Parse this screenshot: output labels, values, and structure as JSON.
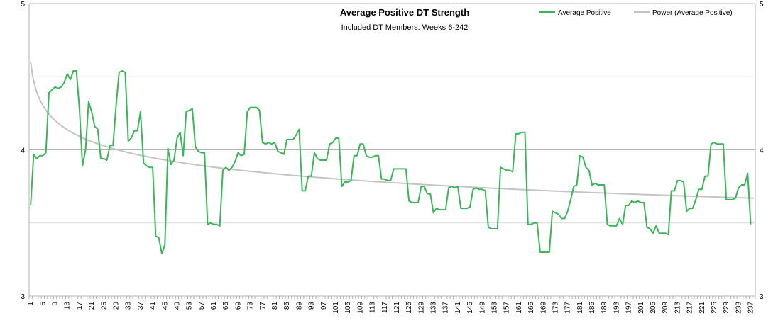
{
  "chart_data": {
    "type": "line",
    "title": "Average Positive DT Strength",
    "subtitle": "Included DT Members: Weeks 6-242",
    "ylim": [
      3,
      5
    ],
    "y_ticks": [
      3,
      4,
      5
    ],
    "y_ticks_right": [
      3,
      4,
      5
    ],
    "grid": "horizontal",
    "legend_position": "top-right",
    "x_tick_labels": [
      "1",
      "5",
      "9",
      "13",
      "17",
      "21",
      "25",
      "29",
      "33",
      "37",
      "41",
      "45",
      "49",
      "53",
      "57",
      "61",
      "65",
      "69",
      "73",
      "77",
      "81",
      "85",
      "89",
      "93",
      "97",
      "101",
      "105",
      "109",
      "113",
      "117",
      "121",
      "125",
      "129",
      "133",
      "137",
      "141",
      "145",
      "149",
      "153",
      "157",
      "161",
      "165",
      "169",
      "173",
      "177",
      "181",
      "185",
      "189",
      "193",
      "197",
      "201",
      "205",
      "209",
      "213",
      "217",
      "221",
      "225",
      "229",
      "233",
      "237"
    ],
    "x_range": [
      1,
      238
    ],
    "series": [
      {
        "name": "Average Positive",
        "color": "#3cb55a",
        "points": [
          [
            1,
            3.62
          ],
          [
            2,
            3.97
          ],
          [
            3,
            3.94
          ],
          [
            4,
            3.96
          ],
          [
            5,
            3.96
          ],
          [
            6,
            3.98
          ],
          [
            7,
            4.39
          ],
          [
            8,
            4.41
          ],
          [
            9,
            4.43
          ],
          [
            10,
            4.42
          ],
          [
            11,
            4.43
          ],
          [
            12,
            4.46
          ],
          [
            13,
            4.52
          ],
          [
            14,
            4.48
          ],
          [
            15,
            4.54
          ],
          [
            16,
            4.54
          ],
          [
            17,
            4.28
          ],
          [
            18,
            3.89
          ],
          [
            19,
            4.0
          ],
          [
            20,
            4.33
          ],
          [
            21,
            4.26
          ],
          [
            22,
            4.16
          ],
          [
            23,
            4.14
          ],
          [
            24,
            3.94
          ],
          [
            25,
            3.94
          ],
          [
            26,
            3.93
          ],
          [
            27,
            4.03
          ],
          [
            28,
            4.03
          ],
          [
            29,
            4.3
          ],
          [
            30,
            4.53
          ],
          [
            31,
            4.54
          ],
          [
            32,
            4.53
          ],
          [
            33,
            4.06
          ],
          [
            34,
            4.08
          ],
          [
            35,
            4.13
          ],
          [
            36,
            4.13
          ],
          [
            37,
            4.26
          ],
          [
            38,
            3.91
          ],
          [
            39,
            3.89
          ],
          [
            40,
            3.88
          ],
          [
            41,
            3.88
          ],
          [
            42,
            3.41
          ],
          [
            43,
            3.4
          ],
          [
            44,
            3.29
          ],
          [
            45,
            3.35
          ],
          [
            46,
            4.01
          ],
          [
            47,
            3.9
          ],
          [
            48,
            3.93
          ],
          [
            49,
            4.08
          ],
          [
            50,
            4.12
          ],
          [
            51,
            3.96
          ],
          [
            52,
            4.26
          ],
          [
            53,
            4.27
          ],
          [
            54,
            4.28
          ],
          [
            55,
            4.02
          ],
          [
            56,
            3.99
          ],
          [
            57,
            3.98
          ],
          [
            58,
            3.98
          ],
          [
            59,
            3.49
          ],
          [
            60,
            3.5
          ],
          [
            61,
            3.49
          ],
          [
            62,
            3.49
          ],
          [
            63,
            3.48
          ],
          [
            64,
            3.86
          ],
          [
            65,
            3.88
          ],
          [
            66,
            3.86
          ],
          [
            67,
            3.88
          ],
          [
            68,
            3.92
          ],
          [
            69,
            3.98
          ],
          [
            70,
            3.96
          ],
          [
            71,
            3.97
          ],
          [
            72,
            4.26
          ],
          [
            73,
            4.29
          ],
          [
            74,
            4.29
          ],
          [
            75,
            4.29
          ],
          [
            76,
            4.27
          ],
          [
            77,
            4.05
          ],
          [
            78,
            4.04
          ],
          [
            79,
            4.05
          ],
          [
            80,
            4.04
          ],
          [
            81,
            4.05
          ],
          [
            82,
            3.99
          ],
          [
            83,
            3.98
          ],
          [
            84,
            3.97
          ],
          [
            85,
            4.07
          ],
          [
            86,
            4.07
          ],
          [
            87,
            4.07
          ],
          [
            88,
            4.1
          ],
          [
            89,
            4.14
          ],
          [
            90,
            3.72
          ],
          [
            91,
            3.72
          ],
          [
            92,
            3.82
          ],
          [
            93,
            3.82
          ],
          [
            94,
            3.98
          ],
          [
            95,
            3.94
          ],
          [
            96,
            3.93
          ],
          [
            97,
            3.93
          ],
          [
            98,
            3.93
          ],
          [
            99,
            4.04
          ],
          [
            100,
            4.05
          ],
          [
            101,
            4.08
          ],
          [
            102,
            4.08
          ],
          [
            103,
            3.75
          ],
          [
            104,
            3.78
          ],
          [
            105,
            3.78
          ],
          [
            106,
            3.79
          ],
          [
            107,
            3.96
          ],
          [
            108,
            3.96
          ],
          [
            109,
            4.04
          ],
          [
            110,
            4.04
          ],
          [
            111,
            3.96
          ],
          [
            112,
            3.95
          ],
          [
            113,
            3.95
          ],
          [
            114,
            3.96
          ],
          [
            115,
            3.96
          ],
          [
            116,
            3.8
          ],
          [
            117,
            3.8
          ],
          [
            118,
            3.79
          ],
          [
            119,
            3.79
          ],
          [
            120,
            3.87
          ],
          [
            121,
            3.87
          ],
          [
            122,
            3.87
          ],
          [
            123,
            3.87
          ],
          [
            124,
            3.87
          ],
          [
            125,
            3.65
          ],
          [
            126,
            3.64
          ],
          [
            127,
            3.64
          ],
          [
            128,
            3.64
          ],
          [
            129,
            3.75
          ],
          [
            130,
            3.75
          ],
          [
            131,
            3.7
          ],
          [
            132,
            3.7
          ],
          [
            133,
            3.57
          ],
          [
            134,
            3.6
          ],
          [
            135,
            3.59
          ],
          [
            136,
            3.59
          ],
          [
            137,
            3.59
          ],
          [
            138,
            3.74
          ],
          [
            139,
            3.75
          ],
          [
            140,
            3.74
          ],
          [
            141,
            3.75
          ],
          [
            142,
            3.6
          ],
          [
            143,
            3.6
          ],
          [
            144,
            3.6
          ],
          [
            145,
            3.61
          ],
          [
            146,
            3.73
          ],
          [
            147,
            3.74
          ],
          [
            148,
            3.73
          ],
          [
            149,
            3.73
          ],
          [
            150,
            3.72
          ],
          [
            151,
            3.47
          ],
          [
            152,
            3.46
          ],
          [
            153,
            3.46
          ],
          [
            154,
            3.46
          ],
          [
            155,
            3.88
          ],
          [
            156,
            3.87
          ],
          [
            157,
            3.86
          ],
          [
            158,
            3.86
          ],
          [
            159,
            3.85
          ],
          [
            160,
            4.11
          ],
          [
            161,
            4.11
          ],
          [
            162,
            4.12
          ],
          [
            163,
            4.12
          ],
          [
            164,
            3.49
          ],
          [
            165,
            3.49
          ],
          [
            166,
            3.5
          ],
          [
            167,
            3.5
          ],
          [
            168,
            3.3
          ],
          [
            169,
            3.3
          ],
          [
            170,
            3.3
          ],
          [
            171,
            3.3
          ],
          [
            172,
            3.58
          ],
          [
            173,
            3.57
          ],
          [
            174,
            3.56
          ],
          [
            175,
            3.53
          ],
          [
            176,
            3.53
          ],
          [
            177,
            3.58
          ],
          [
            178,
            3.66
          ],
          [
            179,
            3.75
          ],
          [
            180,
            3.76
          ],
          [
            181,
            3.96
          ],
          [
            182,
            3.95
          ],
          [
            183,
            3.88
          ],
          [
            184,
            3.86
          ],
          [
            185,
            3.76
          ],
          [
            186,
            3.77
          ],
          [
            187,
            3.76
          ],
          [
            188,
            3.76
          ],
          [
            189,
            3.76
          ],
          [
            190,
            3.49
          ],
          [
            191,
            3.48
          ],
          [
            192,
            3.48
          ],
          [
            193,
            3.48
          ],
          [
            194,
            3.53
          ],
          [
            195,
            3.49
          ],
          [
            196,
            3.62
          ],
          [
            197,
            3.62
          ],
          [
            198,
            3.65
          ],
          [
            199,
            3.64
          ],
          [
            200,
            3.65
          ],
          [
            201,
            3.64
          ],
          [
            202,
            3.64
          ],
          [
            203,
            3.47
          ],
          [
            204,
            3.46
          ],
          [
            205,
            3.43
          ],
          [
            206,
            3.48
          ],
          [
            207,
            3.43
          ],
          [
            208,
            3.43
          ],
          [
            209,
            3.43
          ],
          [
            210,
            3.42
          ],
          [
            211,
            3.72
          ],
          [
            212,
            3.72
          ],
          [
            213,
            3.79
          ],
          [
            214,
            3.79
          ],
          [
            215,
            3.78
          ],
          [
            216,
            3.58
          ],
          [
            217,
            3.6
          ],
          [
            218,
            3.6
          ],
          [
            219,
            3.66
          ],
          [
            220,
            3.73
          ],
          [
            221,
            3.73
          ],
          [
            222,
            3.82
          ],
          [
            223,
            3.82
          ],
          [
            224,
            4.04
          ],
          [
            225,
            4.05
          ],
          [
            226,
            4.04
          ],
          [
            227,
            4.04
          ],
          [
            228,
            4.04
          ],
          [
            229,
            3.66
          ],
          [
            230,
            3.66
          ],
          [
            231,
            3.66
          ],
          [
            232,
            3.67
          ],
          [
            233,
            3.74
          ],
          [
            234,
            3.76
          ],
          [
            235,
            3.76
          ],
          [
            236,
            3.84
          ],
          [
            237,
            3.49
          ]
        ]
      },
      {
        "name": "Power (Average Positive)",
        "color": "#c4c4c4",
        "trend": "power",
        "a": 4.6,
        "b": -0.0413
      }
    ]
  }
}
